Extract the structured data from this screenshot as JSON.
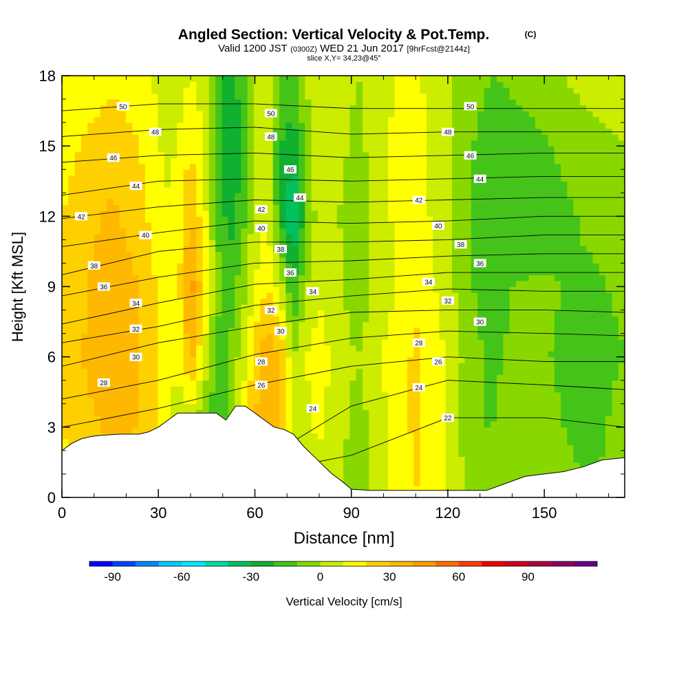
{
  "header": {
    "title": "Angled Section: Vertical Velocity & Pot.Temp.",
    "copyright": "(C)",
    "valid_main": "Valid 1200 JST",
    "valid_zulu": "(0300Z)",
    "valid_date": "WED 21 Jun 2017",
    "forecast": "[9hrFcst@2144z]",
    "slice": "slice X,Y= 34,23@45°"
  },
  "chart_data": {
    "type": "heatmap",
    "title": "Angled Section: Vertical Velocity & Pot.Temp.",
    "xlabel": "Distance [nm]",
    "ylabel": "Height [Kft MSL]",
    "xlim": [
      0,
      175
    ],
    "ylim": [
      0,
      18
    ],
    "x_ticks": [
      "0",
      "30",
      "60",
      "90",
      "120",
      "150"
    ],
    "y_ticks": [
      "0",
      "3",
      "6",
      "9",
      "12",
      "15",
      "18"
    ],
    "terrain_kft": {
      "x": [
        0,
        3,
        6,
        9,
        12,
        18,
        24,
        27,
        30,
        33,
        36,
        39,
        42,
        45,
        48,
        51,
        54,
        57,
        60,
        63,
        66,
        69,
        72,
        75,
        78,
        81,
        84,
        87,
        90,
        96,
        102,
        108,
        114,
        120,
        126,
        132,
        138,
        144,
        150,
        156,
        162,
        168,
        175
      ],
      "y": [
        2.0,
        2.3,
        2.5,
        2.6,
        2.65,
        2.7,
        2.7,
        2.8,
        3.0,
        3.3,
        3.6,
        3.6,
        3.6,
        3.6,
        3.6,
        3.3,
        3.9,
        3.9,
        3.6,
        3.3,
        3.0,
        2.9,
        2.7,
        2.2,
        1.8,
        1.4,
        1.0,
        0.7,
        0.35,
        0.3,
        0.3,
        0.3,
        0.3,
        0.3,
        0.3,
        0.3,
        0.6,
        0.9,
        1.0,
        1.1,
        1.3,
        1.6,
        1.7
      ]
    },
    "vertical_velocity_cm_s": {
      "x": [
        0,
        8,
        16,
        24,
        32,
        36,
        40,
        44,
        48,
        52,
        56,
        60,
        64,
        68,
        72,
        76,
        80,
        86,
        92,
        98,
        104,
        110,
        116,
        122,
        128,
        134,
        140,
        148,
        156,
        164,
        175
      ],
      "heights_kft": [
        0,
        3,
        6,
        9,
        12,
        15,
        18
      ],
      "values": [
        [
          15,
          20,
          22,
          20,
          12,
          5,
          -5,
          -10,
          -15,
          -10,
          5,
          20,
          30,
          25,
          5,
          0,
          5,
          0,
          -10,
          5,
          15,
          20,
          15,
          5,
          -5,
          -5,
          0,
          0,
          -5,
          -10,
          -5
        ],
        [
          20,
          28,
          32,
          30,
          15,
          5,
          0,
          -10,
          -15,
          -10,
          10,
          30,
          38,
          30,
          10,
          8,
          12,
          5,
          -5,
          5,
          15,
          22,
          15,
          5,
          -10,
          -10,
          -5,
          -5,
          -10,
          -15,
          -5
        ],
        [
          22,
          32,
          35,
          30,
          15,
          10,
          35,
          10,
          -15,
          -10,
          5,
          25,
          38,
          30,
          0,
          10,
          15,
          5,
          0,
          8,
          15,
          22,
          15,
          5,
          -8,
          -12,
          -8,
          -8,
          -12,
          -15,
          -10
        ],
        [
          20,
          30,
          35,
          30,
          15,
          15,
          45,
          25,
          -5,
          -15,
          -5,
          10,
          20,
          5,
          -20,
          0,
          8,
          5,
          -10,
          5,
          10,
          18,
          10,
          0,
          -10,
          -15,
          -10,
          -8,
          -10,
          -12,
          -8
        ],
        [
          20,
          28,
          32,
          25,
          10,
          15,
          30,
          15,
          -10,
          -25,
          -15,
          5,
          10,
          -20,
          -45,
          -10,
          5,
          0,
          -10,
          5,
          12,
          15,
          8,
          0,
          -10,
          -15,
          -20,
          -20,
          -12,
          -8,
          -5
        ],
        [
          15,
          22,
          25,
          20,
          8,
          10,
          20,
          10,
          -10,
          -30,
          -20,
          5,
          5,
          -20,
          -25,
          -5,
          8,
          5,
          -5,
          8,
          12,
          15,
          8,
          0,
          -10,
          -18,
          -15,
          -12,
          -8,
          -5,
          0
        ],
        [
          10,
          15,
          18,
          15,
          5,
          5,
          10,
          5,
          -10,
          -25,
          -15,
          5,
          5,
          -10,
          -15,
          0,
          10,
          8,
          0,
          5,
          10,
          12,
          5,
          0,
          -5,
          -10,
          -8,
          -5,
          0,
          5,
          10
        ]
      ]
    },
    "colorbar": {
      "label": "Vertical Velocity [cm/s]",
      "tick_labels": [
        "-90",
        "-60",
        "-30",
        "0",
        "30",
        "60",
        "90"
      ],
      "levels": [
        -90,
        -80,
        -70,
        -60,
        -50,
        -40,
        -30,
        -20,
        -10,
        0,
        10,
        20,
        30,
        40,
        50,
        60,
        70,
        80,
        90,
        100,
        110
      ],
      "colors": [
        "#0000ff",
        "#0044ff",
        "#0088ff",
        "#00ccff",
        "#00e8ff",
        "#00d9a8",
        "#00c060",
        "#10b030",
        "#44c418",
        "#88d800",
        "#ccec00",
        "#ffff00",
        "#ffd000",
        "#ffb800",
        "#ff9c00",
        "#ff7000",
        "#ff3c00",
        "#ee0000",
        "#cc0022",
        "#aa0044",
        "#8a0066",
        "#660088"
      ]
    },
    "theta_contours_label": "Pot.Temp.",
    "theta_contours": [
      {
        "label": "22",
        "x": [
          0,
          30,
          60,
          90,
          120,
          150,
          175
        ],
        "y": [
          0.2,
          0.6,
          1.0,
          1.8,
          3.4,
          3.4,
          3.0
        ]
      },
      {
        "label": "24",
        "x": [
          0,
          30,
          60,
          90,
          120,
          150,
          175
        ],
        "y": [
          0.5,
          0.9,
          1.4,
          3.9,
          5.0,
          4.8,
          4.6
        ]
      },
      {
        "label": "26",
        "x": [
          0,
          30,
          60,
          90,
          120,
          150,
          175
        ],
        "y": [
          3.0,
          3.8,
          4.8,
          5.6,
          6.0,
          5.8,
          5.8
        ]
      },
      {
        "label": "28",
        "x": [
          0,
          30,
          60,
          90,
          120,
          150,
          175
        ],
        "y": [
          4.2,
          5.0,
          6.1,
          6.8,
          7.1,
          7.0,
          6.9
        ]
      },
      {
        "label": "30",
        "x": [
          0,
          30,
          60,
          90,
          120,
          150,
          175
        ],
        "y": [
          5.6,
          6.6,
          7.3,
          7.9,
          8.0,
          8.0,
          7.9
        ]
      },
      {
        "label": "32",
        "x": [
          0,
          30,
          60,
          90,
          120,
          150,
          175
        ],
        "y": [
          6.6,
          7.3,
          8.2,
          8.6,
          8.9,
          8.8,
          8.8
        ]
      },
      {
        "label": "34",
        "x": [
          0,
          30,
          60,
          90,
          120,
          150,
          175
        ],
        "y": [
          7.4,
          8.3,
          9.1,
          9.3,
          9.6,
          9.6,
          9.6
        ]
      },
      {
        "label": "36",
        "x": [
          0,
          30,
          60,
          90,
          120,
          150,
          175
        ],
        "y": [
          8.6,
          9.4,
          10.0,
          10.1,
          10.3,
          10.4,
          10.4
        ]
      },
      {
        "label": "38",
        "x": [
          0,
          30,
          60,
          90,
          120,
          150,
          175
        ],
        "y": [
          9.5,
          10.5,
          10.9,
          10.9,
          11.0,
          11.2,
          11.2
        ]
      },
      {
        "label": "40",
        "x": [
          0,
          30,
          60,
          90,
          120,
          150,
          175
        ],
        "y": [
          10.7,
          11.3,
          11.8,
          11.7,
          11.8,
          12.0,
          12.0
        ]
      },
      {
        "label": "42",
        "x": [
          0,
          30,
          60,
          90,
          120,
          150,
          175
        ],
        "y": [
          11.9,
          12.4,
          12.7,
          12.6,
          12.7,
          12.8,
          12.8
        ]
      },
      {
        "label": "44",
        "x": [
          0,
          30,
          60,
          90,
          120,
          150,
          175
        ],
        "y": [
          12.9,
          13.5,
          13.6,
          13.5,
          13.6,
          13.7,
          13.7
        ]
      },
      {
        "label": "46",
        "x": [
          0,
          30,
          60,
          90,
          120,
          150,
          175
        ],
        "y": [
          14.3,
          14.6,
          14.7,
          14.5,
          14.6,
          14.7,
          14.7
        ]
      },
      {
        "label": "48",
        "x": [
          0,
          30,
          60,
          90,
          120,
          150,
          175
        ],
        "y": [
          15.4,
          15.7,
          15.8,
          15.5,
          15.6,
          15.6,
          15.6
        ]
      },
      {
        "label": "50",
        "x": [
          0,
          30,
          60,
          90,
          120,
          150,
          175
        ],
        "y": [
          16.5,
          16.8,
          16.8,
          16.6,
          16.6,
          16.6,
          16.6
        ]
      }
    ],
    "contour_labels": [
      {
        "text": "50",
        "x": 19,
        "y": 16.7
      },
      {
        "text": "48",
        "x": 29,
        "y": 15.6
      },
      {
        "text": "46",
        "x": 16,
        "y": 14.5
      },
      {
        "text": "44",
        "x": 23,
        "y": 13.3
      },
      {
        "text": "42",
        "x": 6,
        "y": 12.0
      },
      {
        "text": "40",
        "x": 26,
        "y": 11.2
      },
      {
        "text": "38",
        "x": 10,
        "y": 9.9
      },
      {
        "text": "36",
        "x": 13,
        "y": 9.0
      },
      {
        "text": "34",
        "x": 23,
        "y": 8.3
      },
      {
        "text": "32",
        "x": 23,
        "y": 7.2
      },
      {
        "text": "30",
        "x": 23,
        "y": 6.0
      },
      {
        "text": "28",
        "x": 13,
        "y": 4.9
      },
      {
        "text": "50",
        "x": 65,
        "y": 16.4
      },
      {
        "text": "48",
        "x": 65,
        "y": 15.4
      },
      {
        "text": "46",
        "x": 71,
        "y": 14.0
      },
      {
        "text": "44",
        "x": 74,
        "y": 12.8
      },
      {
        "text": "42",
        "x": 62,
        "y": 12.3
      },
      {
        "text": "40",
        "x": 62,
        "y": 11.5
      },
      {
        "text": "38",
        "x": 68,
        "y": 10.6
      },
      {
        "text": "36",
        "x": 71,
        "y": 9.6
      },
      {
        "text": "34",
        "x": 78,
        "y": 8.8
      },
      {
        "text": "32",
        "x": 65,
        "y": 8.0
      },
      {
        "text": "30",
        "x": 68,
        "y": 7.1
      },
      {
        "text": "28",
        "x": 62,
        "y": 5.8
      },
      {
        "text": "26",
        "x": 62,
        "y": 4.8
      },
      {
        "text": "24",
        "x": 78,
        "y": 3.8
      },
      {
        "text": "50",
        "x": 127,
        "y": 16.7
      },
      {
        "text": "48",
        "x": 120,
        "y": 15.6
      },
      {
        "text": "46",
        "x": 127,
        "y": 14.6
      },
      {
        "text": "44",
        "x": 130,
        "y": 13.6
      },
      {
        "text": "42",
        "x": 111,
        "y": 12.7
      },
      {
        "text": "40",
        "x": 117,
        "y": 11.6
      },
      {
        "text": "38",
        "x": 124,
        "y": 10.8
      },
      {
        "text": "36",
        "x": 130,
        "y": 10.0
      },
      {
        "text": "34",
        "x": 114,
        "y": 9.2
      },
      {
        "text": "32",
        "x": 120,
        "y": 8.4
      },
      {
        "text": "30",
        "x": 130,
        "y": 7.5
      },
      {
        "text": "28",
        "x": 111,
        "y": 6.6
      },
      {
        "text": "26",
        "x": 117,
        "y": 5.8
      },
      {
        "text": "24",
        "x": 111,
        "y": 4.7
      },
      {
        "text": "22",
        "x": 120,
        "y": 3.4
      }
    ]
  }
}
